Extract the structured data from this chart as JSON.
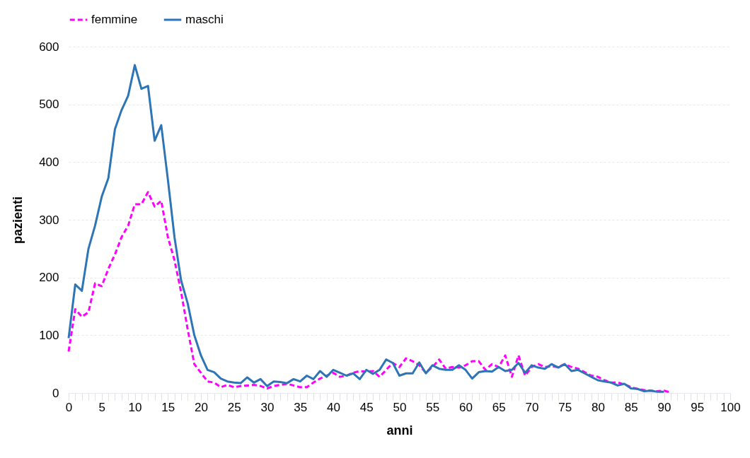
{
  "chart_data": {
    "type": "line",
    "xlabel": "anni",
    "ylabel": "pazienti",
    "legend": "top left",
    "grid": "y",
    "xlim": [
      0,
      100
    ],
    "ylim": [
      0,
      600
    ],
    "yticks": [
      0,
      100,
      200,
      300,
      400,
      500,
      600
    ],
    "xticks": [
      0,
      {
        "value": 1,
        "label": null
      },
      {
        "value": 2,
        "label": null
      },
      {
        "value": 3,
        "label": null
      },
      {
        "value": 4,
        "label": null
      },
      5,
      {
        "value": 6,
        "label": null
      },
      {
        "value": 7,
        "label": null
      },
      {
        "value": 8,
        "label": null
      },
      {
        "value": 9,
        "label": null
      },
      10,
      {
        "value": 11,
        "label": null
      },
      {
        "value": 12,
        "label": null
      },
      {
        "value": 13,
        "label": null
      },
      {
        "value": 14,
        "label": null
      },
      15,
      {
        "value": 16,
        "label": null
      },
      {
        "value": 17,
        "label": null
      },
      {
        "value": 18,
        "label": null
      },
      {
        "value": 19,
        "label": null
      },
      20,
      {
        "value": 21,
        "label": null
      },
      {
        "value": 22,
        "label": null
      },
      {
        "value": 23,
        "label": null
      },
      {
        "value": 24,
        "label": null
      },
      25,
      {
        "value": 26,
        "label": null
      },
      {
        "value": 27,
        "label": null
      },
      {
        "value": 28,
        "label": null
      },
      {
        "value": 29,
        "label": null
      },
      30,
      {
        "value": 31,
        "label": null
      },
      {
        "value": 32,
        "label": null
      },
      {
        "value": 33,
        "label": null
      },
      {
        "value": 34,
        "label": null
      },
      35,
      {
        "value": 36,
        "label": null
      },
      {
        "value": 37,
        "label": null
      },
      {
        "value": 38,
        "label": null
      },
      {
        "value": 39,
        "label": null
      },
      40,
      {
        "value": 41,
        "label": null
      },
      {
        "value": 42,
        "label": null
      },
      {
        "value": 43,
        "label": null
      },
      {
        "value": 44,
        "label": null
      },
      45,
      {
        "value": 46,
        "label": null
      },
      {
        "value": 47,
        "label": null
      },
      {
        "value": 48,
        "label": null
      },
      {
        "value": 49,
        "label": null
      },
      50,
      {
        "value": 51,
        "label": null
      },
      {
        "value": 52,
        "label": null
      },
      {
        "value": 53,
        "label": null
      },
      {
        "value": 54,
        "label": null
      },
      55,
      {
        "value": 56,
        "label": null
      },
      {
        "value": 57,
        "label": null
      },
      {
        "value": 58,
        "label": null
      },
      {
        "value": 59,
        "label": null
      },
      60,
      {
        "value": 61,
        "label": null
      },
      {
        "value": 62,
        "label": null
      },
      {
        "value": 63,
        "label": null
      },
      {
        "value": 64,
        "label": null
      },
      65,
      {
        "value": 66,
        "label": null
      },
      {
        "value": 67,
        "label": null
      },
      {
        "value": 68,
        "label": null
      },
      {
        "value": 69,
        "label": null
      },
      70,
      {
        "value": 71,
        "label": null
      },
      {
        "value": 72,
        "label": null
      },
      {
        "value": 73,
        "label": null
      },
      {
        "value": 74,
        "label": null
      },
      75,
      {
        "value": 76,
        "label": null
      },
      {
        "value": 77,
        "label": null
      },
      {
        "value": 78,
        "label": null
      },
      {
        "value": 79,
        "label": null
      },
      80,
      {
        "value": 81,
        "label": null
      },
      {
        "value": 82,
        "label": null
      },
      {
        "value": 83,
        "label": null
      },
      {
        "value": 84,
        "label": null
      },
      85,
      {
        "value": 86,
        "label": null
      },
      {
        "value": 87,
        "label": null
      },
      {
        "value": 88,
        "label": null
      },
      {
        "value": 89,
        "label": null
      },
      90,
      {
        "value": 91,
        "label": null
      },
      {
        "value": 92,
        "label": null
      },
      {
        "value": 93,
        "label": null
      },
      {
        "value": 94,
        "label": null
      },
      95,
      {
        "value": 96,
        "label": null
      },
      {
        "value": 97,
        "label": null
      },
      {
        "value": 98,
        "label": null
      },
      {
        "value": 99,
        "label": null
      },
      100
    ],
    "x": [
      0,
      1,
      2,
      3,
      4,
      5,
      6,
      7,
      8,
      9,
      10,
      11,
      12,
      13,
      14,
      15,
      16,
      17,
      18,
      19,
      20,
      21,
      22,
      23,
      24,
      25,
      26,
      27,
      28,
      29,
      30,
      31,
      32,
      33,
      34,
      35,
      36,
      37,
      38,
      39,
      40,
      41,
      42,
      43,
      44,
      45,
      46,
      47,
      48,
      49,
      50,
      51,
      52,
      53,
      54,
      55,
      56,
      57,
      58,
      59,
      60,
      61,
      62,
      63,
      64,
      65,
      66,
      67,
      68,
      69,
      70,
      71,
      72,
      73,
      74,
      75,
      76,
      77,
      78,
      79,
      80,
      81,
      82,
      83,
      84,
      85,
      86,
      87,
      88,
      89,
      90,
      91
    ],
    "series": [
      {
        "name": "femmine",
        "color": "#ff00ff",
        "line_style": "dashed",
        "values": [
          72,
          145,
          132,
          140,
          190,
          185,
          215,
          240,
          270,
          290,
          327,
          327,
          348,
          323,
          333,
          270,
          230,
          175,
          110,
          50,
          35,
          20,
          18,
          10,
          14,
          10,
          12,
          13,
          14,
          12,
          8,
          12,
          14,
          16,
          13,
          10,
          10,
          18,
          25,
          30,
          35,
          28,
          30,
          35,
          38,
          37,
          38,
          28,
          40,
          52,
          45,
          60,
          55,
          48,
          35,
          45,
          58,
          42,
          45,
          44,
          48,
          55,
          55,
          40,
          50,
          45,
          65,
          28,
          65,
          30,
          45,
          50,
          45,
          46,
          45,
          50,
          45,
          42,
          36,
          30,
          28,
          22,
          18,
          18,
          15,
          10,
          7,
          5,
          4,
          3,
          4,
          1
        ]
      },
      {
        "name": "maschi",
        "color": "#2e75b6",
        "line_style": "solid",
        "values": [
          95,
          188,
          177,
          250,
          290,
          340,
          372,
          457,
          490,
          515,
          568,
          527,
          532,
          437,
          464,
          370,
          270,
          195,
          155,
          100,
          65,
          40,
          36,
          25,
          20,
          18,
          17,
          27,
          18,
          24,
          12,
          20,
          19,
          17,
          24,
          20,
          30,
          24,
          38,
          28,
          40,
          35,
          30,
          34,
          24,
          40,
          33,
          40,
          58,
          52,
          30,
          34,
          34,
          53,
          34,
          48,
          42,
          40,
          40,
          48,
          40,
          25,
          36,
          38,
          37,
          45,
          38,
          40,
          52,
          35,
          48,
          44,
          42,
          50,
          44,
          50,
          38,
          40,
          34,
          28,
          22,
          20,
          18,
          13,
          16,
          8,
          7,
          3,
          4,
          2,
          2,
          null
        ]
      }
    ]
  }
}
